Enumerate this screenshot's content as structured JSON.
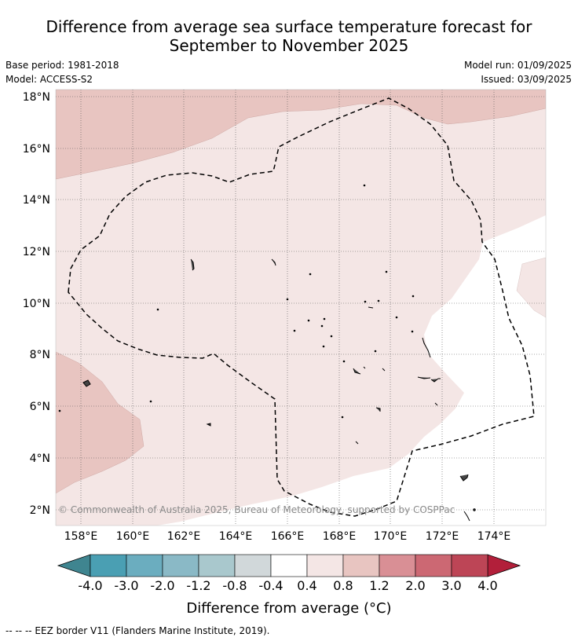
{
  "title_line1": "Difference from average sea surface temperature forecast for",
  "title_line2": "September to November 2025",
  "base_period": "Base period: 1981-2018",
  "model": "Model: ACCESS-S2",
  "model_run": "Model run: 01/09/2025",
  "issued": "Issued: 03/09/2025",
  "copyright": "© Commonwealth of Australia 2025, Bureau of Meteorology, supported by COSPPac",
  "lat_labels": [
    "18°N",
    "16°N",
    "14°N",
    "12°N",
    "10°N",
    "8°N",
    "6°N",
    "4°N",
    "2°N"
  ],
  "lon_labels": [
    "158°E",
    "160°E",
    "162°E",
    "164°E",
    "166°E",
    "168°E",
    "170°E",
    "172°E",
    "174°E"
  ],
  "colorbar": {
    "title": "Difference from average (°C)",
    "ticks": [
      "-4.0",
      "-3.0",
      "-2.0",
      "-1.2",
      "-0.8",
      "-0.4",
      "0.4",
      "0.8",
      "1.2",
      "2.0",
      "3.0",
      "4.0"
    ],
    "colors": [
      "#4a9fb3",
      "#6badbf",
      "#8ab9c6",
      "#a9c8cd",
      "#d1d8da",
      "#ffffff",
      "#f4e6e5",
      "#e8c5c1",
      "#d98f95",
      "#cc6873",
      "#bd4556"
    ],
    "extend_low_color": "#3f8590",
    "extend_high_color": "#b21f3a"
  },
  "legend_footnote": "-- -- -- EEZ border V11 (Flanders Marine Institute, 2019).",
  "map": {
    "region_colors": {
      "light": "#f4e6e5",
      "medium": "#e8c5c1",
      "none": "#ffffff"
    }
  }
}
